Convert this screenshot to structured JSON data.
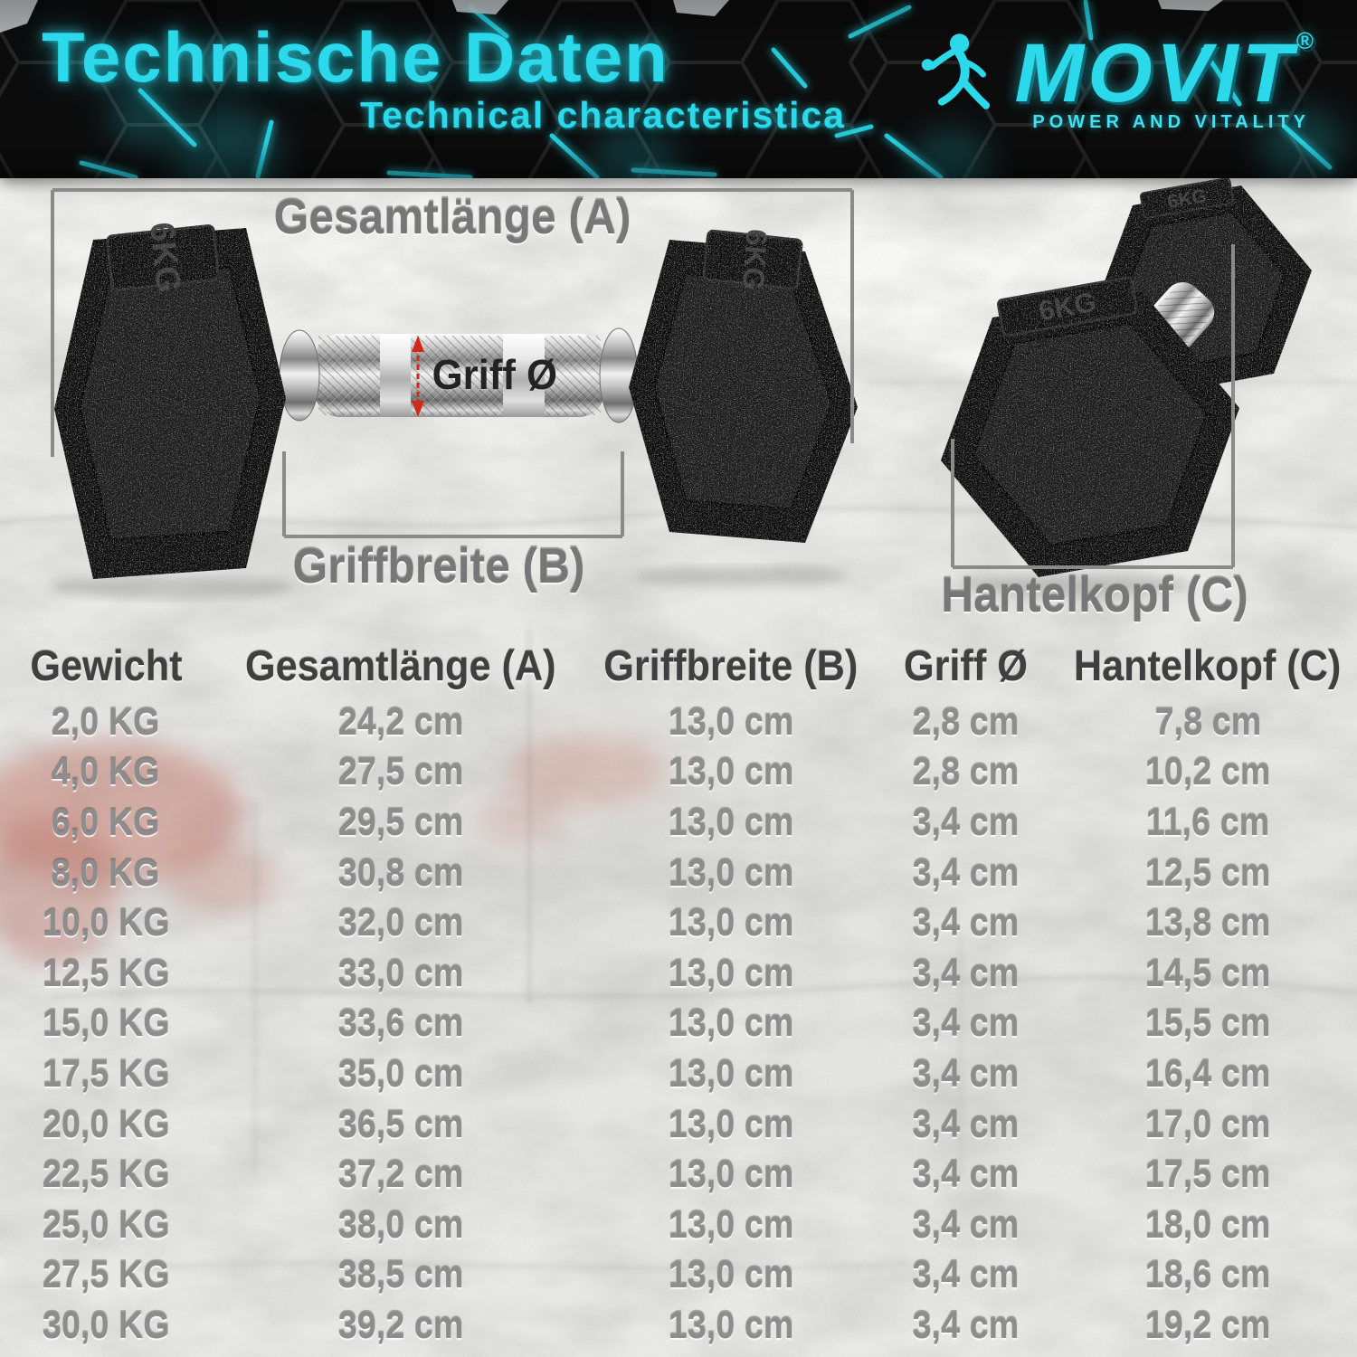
{
  "header": {
    "title": "Technische Daten",
    "subtitle": "Technical characteristica",
    "logo": {
      "brand": "MOVIT",
      "registered_mark": "®",
      "tagline": "POWER AND VITALITY"
    }
  },
  "diagram": {
    "weight_marking": "6KG",
    "labels": {
      "total_length": "Gesamtlänge (A)",
      "grip_width": "Griffbreite (B)",
      "grip_diameter": "Griff Ø",
      "head_size": "Hantelkopf (C)"
    }
  },
  "colors": {
    "accent_cyan": "#2BD9EA",
    "annotation_gray": "#828282",
    "table_header_text": "#3F3F3F",
    "table_value_text": "#8D8D8D",
    "arrow_red": "#D4271B",
    "header_background": "#070707"
  },
  "chart_data": {
    "type": "table",
    "title": "Technische Daten",
    "columns": [
      "Gewicht",
      "Gesamtlänge (A)",
      "Griffbreite (B)",
      "Griff Ø",
      "Hantelkopf (C)"
    ],
    "rows": [
      [
        "2,0 KG",
        "24,2 cm",
        "13,0 cm",
        "2,8 cm",
        "7,8 cm"
      ],
      [
        "4,0 KG",
        "27,5 cm",
        "13,0 cm",
        "2,8 cm",
        "10,2 cm"
      ],
      [
        "6,0 KG",
        "29,5 cm",
        "13,0 cm",
        "3,4 cm",
        "11,6 cm"
      ],
      [
        "8,0 KG",
        "30,8 cm",
        "13,0 cm",
        "3,4 cm",
        "12,5 cm"
      ],
      [
        "10,0 KG",
        "32,0 cm",
        "13,0 cm",
        "3,4 cm",
        "13,8 cm"
      ],
      [
        "12,5 KG",
        "33,0 cm",
        "13,0 cm",
        "3,4 cm",
        "14,5 cm"
      ],
      [
        "15,0 KG",
        "33,6 cm",
        "13,0 cm",
        "3,4 cm",
        "15,5 cm"
      ],
      [
        "17,5 KG",
        "35,0 cm",
        "13,0 cm",
        "3,4 cm",
        "16,4 cm"
      ],
      [
        "20,0 KG",
        "36,5 cm",
        "13,0 cm",
        "3,4 cm",
        "17,0 cm"
      ],
      [
        "22,5 KG",
        "37,2 cm",
        "13,0 cm",
        "3,4 cm",
        "17,5 cm"
      ],
      [
        "25,0 KG",
        "38,0 cm",
        "13,0 cm",
        "3,4 cm",
        "18,0 cm"
      ],
      [
        "27,5 KG",
        "38,5 cm",
        "13,0 cm",
        "3,4 cm",
        "18,6 cm"
      ],
      [
        "30,0 KG",
        "39,2 cm",
        "13,0 cm",
        "3,4 cm",
        "19,2 cm"
      ]
    ]
  }
}
